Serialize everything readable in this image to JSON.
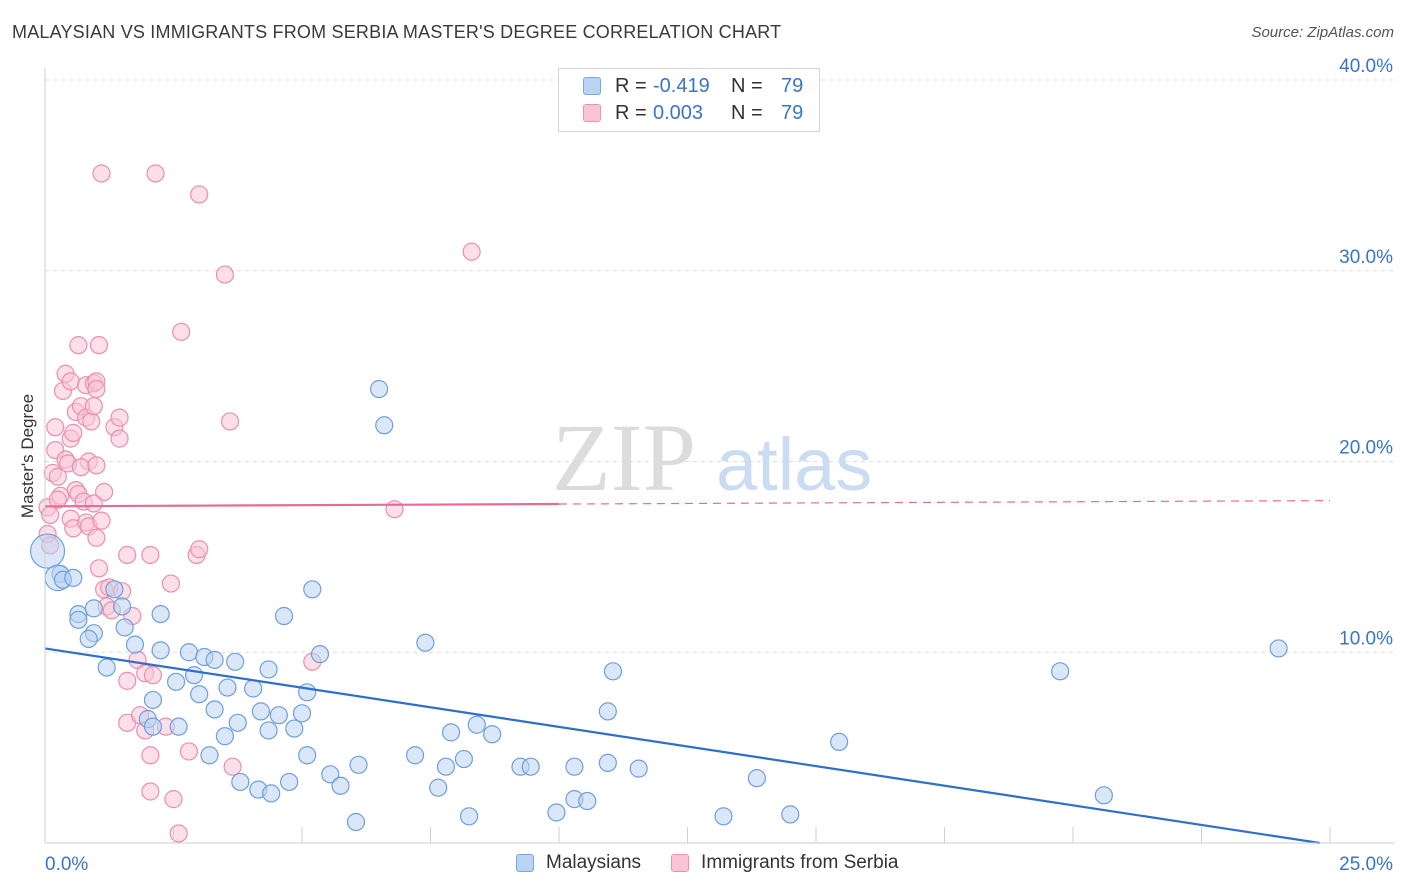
{
  "title": "MALAYSIAN VS IMMIGRANTS FROM SERBIA MASTER'S DEGREE CORRELATION CHART",
  "source": "Source: ZipAtlas.com",
  "watermark": {
    "zip": "ZIP",
    "atlas": "atlas"
  },
  "legend_top": {
    "rows": [
      {
        "r_label": "R =",
        "r_value": "-0.419",
        "n_label": "N =",
        "n_value": "79"
      },
      {
        "r_label": "R =",
        "r_value": "0.003",
        "n_label": "N =",
        "n_value": "79"
      }
    ]
  },
  "legend_bottom": {
    "series1": "Malaysians",
    "series2": "Immigrants from Serbia"
  },
  "colors": {
    "blue_fill": "#b9d3f3",
    "blue_stroke": "#6f9fdc",
    "blue_line": "#2f6fcc",
    "pink_fill": "#f9c5d5",
    "pink_stroke": "#ea8fae",
    "pink_line": "#e46d93",
    "tick_label": "#3a75c4",
    "grid": "#dcdcdc"
  },
  "chart_data": {
    "type": "scatter",
    "title": "MALAYSIAN VS IMMIGRANTS FROM SERBIA MASTER'S DEGREE CORRELATION CHART",
    "xlabel": "",
    "ylabel": "Master's Degree",
    "xlim": [
      0,
      25
    ],
    "ylim": [
      0,
      40
    ],
    "x_tick_labels": [
      "0.0%",
      "25.0%"
    ],
    "y_ticks": [
      10,
      20,
      30,
      40
    ],
    "y_tick_labels": [
      "10.0%",
      "20.0%",
      "30.0%",
      "40.0%"
    ],
    "grid": true,
    "series": [
      {
        "name": "Malaysians",
        "r": -0.419,
        "n": 79,
        "trend": {
          "x": [
            0,
            24.8
          ],
          "y": [
            10.2,
            0.0
          ]
        },
        "points": [
          {
            "x": 0.05,
            "y": 15.3,
            "s": 2
          },
          {
            "x": 0.3,
            "y": 14.1
          },
          {
            "x": 0.25,
            "y": 13.9,
            "s": 1.5
          },
          {
            "x": 0.35,
            "y": 13.8
          },
          {
            "x": 0.55,
            "y": 13.9
          },
          {
            "x": 0.65,
            "y": 12.0
          },
          {
            "x": 1.35,
            "y": 13.3
          },
          {
            "x": 1.5,
            "y": 12.4
          },
          {
            "x": 0.95,
            "y": 12.3
          },
          {
            "x": 1.55,
            "y": 11.3
          },
          {
            "x": 0.65,
            "y": 11.7
          },
          {
            "x": 0.95,
            "y": 11.0
          },
          {
            "x": 0.85,
            "y": 10.7
          },
          {
            "x": 2.25,
            "y": 12.0
          },
          {
            "x": 1.75,
            "y": 10.4
          },
          {
            "x": 2.25,
            "y": 10.1
          },
          {
            "x": 2.8,
            "y": 10.0
          },
          {
            "x": 3.1,
            "y": 9.75
          },
          {
            "x": 3.3,
            "y": 9.6
          },
          {
            "x": 1.2,
            "y": 9.2
          },
          {
            "x": 2.9,
            "y": 8.8
          },
          {
            "x": 2.55,
            "y": 8.45
          },
          {
            "x": 3.55,
            "y": 8.15
          },
          {
            "x": 4.35,
            "y": 9.1
          },
          {
            "x": 3.7,
            "y": 9.5
          },
          {
            "x": 5.35,
            "y": 9.9
          },
          {
            "x": 4.65,
            "y": 11.9
          },
          {
            "x": 5.2,
            "y": 13.3
          },
          {
            "x": 4.05,
            "y": 8.1
          },
          {
            "x": 3.0,
            "y": 7.8
          },
          {
            "x": 2.1,
            "y": 7.5
          },
          {
            "x": 3.3,
            "y": 7.0
          },
          {
            "x": 2.0,
            "y": 6.5
          },
          {
            "x": 2.1,
            "y": 6.1
          },
          {
            "x": 2.6,
            "y": 6.1
          },
          {
            "x": 4.2,
            "y": 6.9
          },
          {
            "x": 3.75,
            "y": 6.3
          },
          {
            "x": 4.55,
            "y": 6.7
          },
          {
            "x": 5.0,
            "y": 6.8
          },
          {
            "x": 5.1,
            "y": 7.9
          },
          {
            "x": 3.5,
            "y": 5.6
          },
          {
            "x": 4.35,
            "y": 5.9
          },
          {
            "x": 4.85,
            "y": 6.0
          },
          {
            "x": 3.2,
            "y": 4.6
          },
          {
            "x": 3.8,
            "y": 3.2
          },
          {
            "x": 4.15,
            "y": 2.8
          },
          {
            "x": 4.4,
            "y": 2.6
          },
          {
            "x": 4.75,
            "y": 3.2
          },
          {
            "x": 5.1,
            "y": 4.6
          },
          {
            "x": 5.55,
            "y": 3.6
          },
          {
            "x": 5.75,
            "y": 3.0
          },
          {
            "x": 6.1,
            "y": 4.1
          },
          {
            "x": 6.05,
            "y": 1.1
          },
          {
            "x": 6.5,
            "y": 23.8
          },
          {
            "x": 6.6,
            "y": 21.9
          },
          {
            "x": 7.2,
            "y": 4.6
          },
          {
            "x": 7.4,
            "y": 10.5
          },
          {
            "x": 7.65,
            "y": 2.9
          },
          {
            "x": 7.8,
            "y": 4.0
          },
          {
            "x": 7.9,
            "y": 5.8
          },
          {
            "x": 8.15,
            "y": 4.4
          },
          {
            "x": 8.25,
            "y": 1.4
          },
          {
            "x": 8.4,
            "y": 6.2
          },
          {
            "x": 8.7,
            "y": 5.7
          },
          {
            "x": 9.25,
            "y": 4.0
          },
          {
            "x": 9.45,
            "y": 4.0
          },
          {
            "x": 9.95,
            "y": 1.6
          },
          {
            "x": 10.3,
            "y": 4.0
          },
          {
            "x": 10.3,
            "y": 2.3
          },
          {
            "x": 10.55,
            "y": 2.2
          },
          {
            "x": 10.95,
            "y": 6.9
          },
          {
            "x": 10.95,
            "y": 4.2
          },
          {
            "x": 11.05,
            "y": 9.0
          },
          {
            "x": 11.55,
            "y": 3.9
          },
          {
            "x": 13.2,
            "y": 1.4
          },
          {
            "x": 13.85,
            "y": 3.4
          },
          {
            "x": 14.5,
            "y": 1.5
          },
          {
            "x": 15.45,
            "y": 5.3
          },
          {
            "x": 19.75,
            "y": 9.0
          },
          {
            "x": 20.6,
            "y": 2.5
          },
          {
            "x": 24.0,
            "y": 10.2
          }
        ]
      },
      {
        "name": "Immigrants from Serbia",
        "r": 0.003,
        "n": 79,
        "trend": {
          "x": [
            0,
            25
          ],
          "y": [
            17.65,
            17.95
          ]
        },
        "points": [
          {
            "x": 0.05,
            "y": 17.6
          },
          {
            "x": 0.1,
            "y": 17.2
          },
          {
            "x": 0.05,
            "y": 16.2
          },
          {
            "x": 0.1,
            "y": 15.6
          },
          {
            "x": 0.15,
            "y": 19.4
          },
          {
            "x": 0.2,
            "y": 21.8
          },
          {
            "x": 0.2,
            "y": 20.6
          },
          {
            "x": 0.25,
            "y": 19.2
          },
          {
            "x": 0.3,
            "y": 18.2
          },
          {
            "x": 0.25,
            "y": 18.0
          },
          {
            "x": 0.4,
            "y": 20.1
          },
          {
            "x": 0.45,
            "y": 19.9
          },
          {
            "x": 0.5,
            "y": 17.0
          },
          {
            "x": 0.55,
            "y": 16.5
          },
          {
            "x": 0.6,
            "y": 18.5
          },
          {
            "x": 0.65,
            "y": 18.3
          },
          {
            "x": 0.75,
            "y": 17.9
          },
          {
            "x": 0.8,
            "y": 16.8
          },
          {
            "x": 0.85,
            "y": 16.6
          },
          {
            "x": 0.5,
            "y": 21.2
          },
          {
            "x": 0.55,
            "y": 21.5
          },
          {
            "x": 0.6,
            "y": 22.6
          },
          {
            "x": 0.7,
            "y": 22.9
          },
          {
            "x": 0.8,
            "y": 22.3
          },
          {
            "x": 0.9,
            "y": 22.1
          },
          {
            "x": 0.95,
            "y": 22.9
          },
          {
            "x": 0.35,
            "y": 23.7
          },
          {
            "x": 0.4,
            "y": 24.6
          },
          {
            "x": 0.5,
            "y": 24.2
          },
          {
            "x": 0.65,
            "y": 26.1
          },
          {
            "x": 0.8,
            "y": 24.0
          },
          {
            "x": 0.95,
            "y": 24.1
          },
          {
            "x": 1.0,
            "y": 24.2
          },
          {
            "x": 1.05,
            "y": 26.1
          },
          {
            "x": 1.0,
            "y": 23.8
          },
          {
            "x": 0.85,
            "y": 20.0
          },
          {
            "x": 0.7,
            "y": 19.7
          },
          {
            "x": 1.0,
            "y": 19.8
          },
          {
            "x": 1.1,
            "y": 16.9
          },
          {
            "x": 1.15,
            "y": 18.4
          },
          {
            "x": 1.0,
            "y": 16.0
          },
          {
            "x": 1.05,
            "y": 14.4
          },
          {
            "x": 1.15,
            "y": 13.3
          },
          {
            "x": 1.2,
            "y": 12.4
          },
          {
            "x": 1.3,
            "y": 12.2
          },
          {
            "x": 1.35,
            "y": 21.8
          },
          {
            "x": 1.45,
            "y": 22.3
          },
          {
            "x": 1.45,
            "y": 21.2
          },
          {
            "x": 1.25,
            "y": 13.4
          },
          {
            "x": 1.6,
            "y": 15.1
          },
          {
            "x": 1.6,
            "y": 8.5
          },
          {
            "x": 1.6,
            "y": 6.3
          },
          {
            "x": 1.7,
            "y": 11.9
          },
          {
            "x": 1.8,
            "y": 9.6
          },
          {
            "x": 1.95,
            "y": 8.9
          },
          {
            "x": 1.85,
            "y": 6.7
          },
          {
            "x": 1.95,
            "y": 5.9
          },
          {
            "x": 2.05,
            "y": 4.6
          },
          {
            "x": 2.05,
            "y": 2.7
          },
          {
            "x": 2.05,
            "y": 15.1
          },
          {
            "x": 2.15,
            "y": 35.1
          },
          {
            "x": 1.1,
            "y": 35.1
          },
          {
            "x": 2.1,
            "y": 8.8
          },
          {
            "x": 2.35,
            "y": 6.1
          },
          {
            "x": 2.45,
            "y": 13.6
          },
          {
            "x": 2.5,
            "y": 2.3
          },
          {
            "x": 2.6,
            "y": 0.5
          },
          {
            "x": 2.65,
            "y": 26.8
          },
          {
            "x": 2.95,
            "y": 15.1
          },
          {
            "x": 3.0,
            "y": 15.4
          },
          {
            "x": 3.0,
            "y": 34.0
          },
          {
            "x": 3.5,
            "y": 29.8
          },
          {
            "x": 3.6,
            "y": 22.1
          },
          {
            "x": 3.65,
            "y": 4.0
          },
          {
            "x": 5.2,
            "y": 9.5
          },
          {
            "x": 6.8,
            "y": 17.5
          },
          {
            "x": 8.3,
            "y": 31.0
          },
          {
            "x": 1.5,
            "y": 13.2
          },
          {
            "x": 0.95,
            "y": 17.8
          },
          {
            "x": 2.8,
            "y": 4.8
          }
        ]
      }
    ]
  }
}
